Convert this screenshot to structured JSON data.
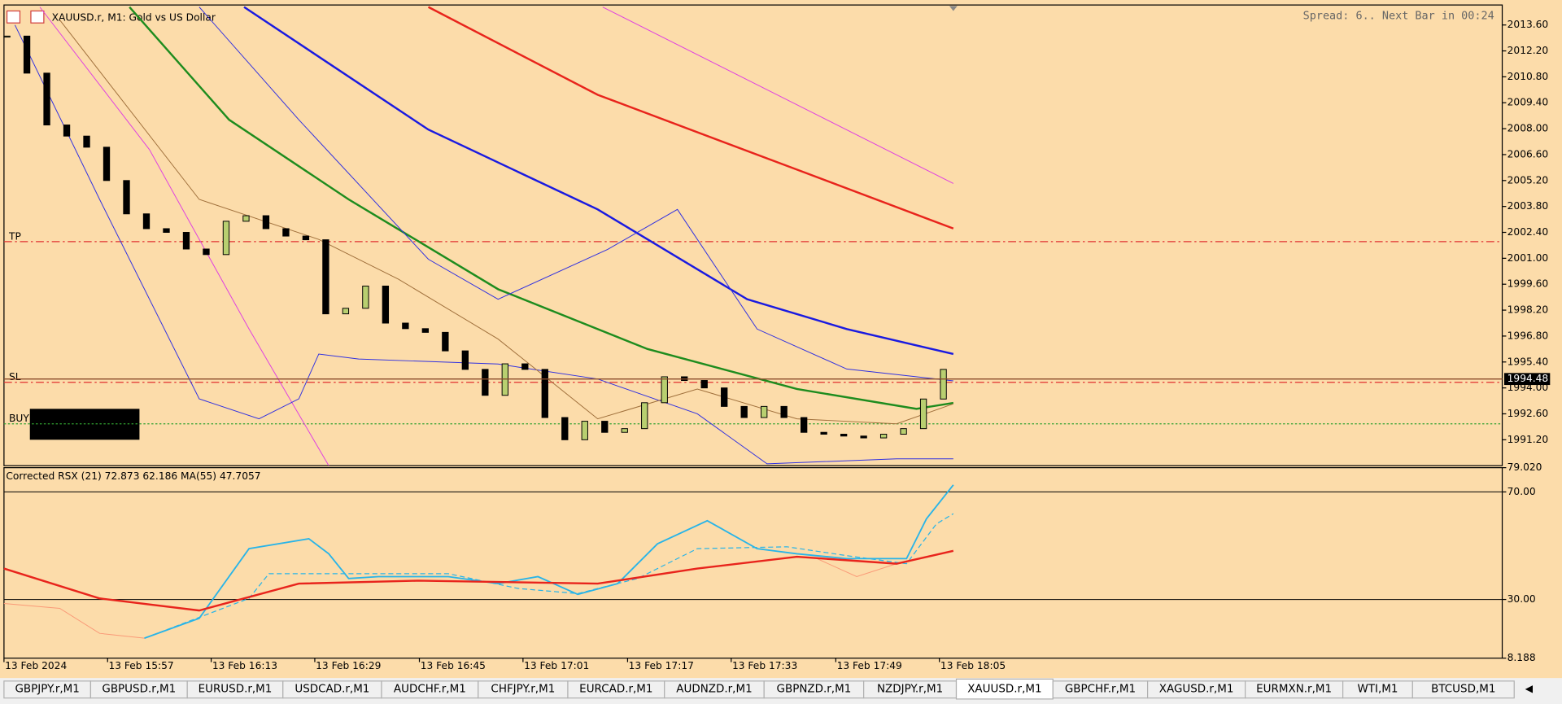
{
  "window": {
    "symbol_title": "XAUUSD.r, M1:  Gold vs US Dollar",
    "status": "Spread: 6.. Next Bar in 00:24"
  },
  "chart_data": [
    {
      "type": "candlestick",
      "xlim": [
        -0.15,
        75.05
      ],
      "ylim": [
        1989.8,
        2014.68
      ],
      "yticks": [
        {
          "value": 2013.6,
          "label": "2013.60"
        },
        {
          "value": 2012.2,
          "label": "2012.20"
        },
        {
          "value": 2010.8,
          "label": "2010.80"
        },
        {
          "value": 2009.4,
          "label": "2009.40"
        },
        {
          "value": 2008,
          "label": "2008.00"
        },
        {
          "value": 2006.6,
          "label": "2006.60"
        },
        {
          "value": 2005.2,
          "label": "2005.20"
        },
        {
          "value": 2003.8,
          "label": "2003.80"
        },
        {
          "value": 2002.4,
          "label": "2002.40"
        },
        {
          "value": 2001,
          "label": "2001.00"
        },
        {
          "value": 1999.6,
          "label": "1999.60"
        },
        {
          "value": 1998.2,
          "label": "1998.20"
        },
        {
          "value": 1996.8,
          "label": "1996.80"
        },
        {
          "value": 1995.4,
          "label": "1995.40"
        },
        {
          "value": 1994,
          "label": "1994.00"
        },
        {
          "value": 1992.6,
          "label": "1992.60"
        },
        {
          "value": 1991.2,
          "label": "1991.20"
        }
      ],
      "values": [
        2013.0,
        2011.0,
        2008.2,
        2007.6,
        2007.0,
        2005.2,
        2003.4,
        2002.6,
        2002.4,
        2001.5,
        2001.2,
        2003.0,
        2003.3,
        2002.6,
        2002.2,
        2002.0,
        1998.0,
        1998.3,
        1999.5,
        1997.5,
        1997.2,
        1997.0,
        1996.0,
        1995.0,
        1993.6,
        1995.3,
        1995.0,
        1992.4,
        1991.2,
        1992.2,
        1991.6,
        1991.8,
        1993.2,
        1994.6,
        1994.4,
        1994.0,
        1993.0,
        1992.4,
        1993.0,
        1992.4,
        1991.6,
        1991.5,
        1991.4,
        1991.3,
        1991.5,
        1991.8,
        1993.4,
        1995.0
      ],
      "up_color": "#b8cf70",
      "down_color": "#000000",
      "lines": [
        {
          "color": "#e8241c",
          "style": "thick",
          "x": [
            21.15,
            29.65,
            39.65,
            47.5
          ],
          "values": [
            2014.57,
            2009.83,
            2005.79,
            2002.61
          ]
        },
        {
          "color": "#1a1ae0",
          "style": "thick",
          "x": [
            11.9,
            21.15,
            29.65,
            37.15,
            42.15,
            47.5
          ],
          "values": [
            2014.57,
            2007.95,
            2003.64,
            1998.79,
            1997.18,
            1995.83
          ]
        },
        {
          "color": "#1e8c1e",
          "style": "thick",
          "x": [
            6.15,
            11.15,
            17.15,
            24.65,
            32.15,
            39.65,
            45.65,
            47.5
          ],
          "values": [
            2014.57,
            2008.48,
            2004.18,
            1999.33,
            1996.1,
            1993.94,
            1992.87,
            1993.19
          ]
        },
        {
          "color": "#e040e0",
          "style": "thin",
          "x": [
            29.9,
            47.5
          ],
          "values": [
            2014.57,
            2005.04
          ]
        },
        {
          "color": "#e040e0",
          "style": "thin",
          "x": [
            1.65,
            7.15,
            12.15,
            16.15
          ],
          "values": [
            2014.57,
            2006.87,
            1997.18,
            1989.8
          ]
        },
        {
          "color": "#3030e0",
          "style": "thin",
          "x": [
            9.65,
            14.65,
            21.15,
            24.65,
            30.15,
            33.65,
            37.65,
            42.15,
            47.5
          ],
          "values": [
            2014.57,
            2008.48,
            2000.95,
            1998.79,
            2001.48,
            2003.64,
            1997.18,
            1995.02,
            1994.38
          ]
        },
        {
          "color": "#3030e0",
          "style": "thin",
          "x": [
            0.4,
            4.65,
            9.65,
            12.65,
            14.65,
            15.65,
            17.65,
            24.65,
            29.65,
            34.65,
            38.15,
            44.65,
            47.5
          ],
          "values": [
            2013.6,
            2004.18,
            1993.41,
            1992.33,
            1993.41,
            1995.83,
            1995.56,
            1995.29,
            1994.48,
            1992.6,
            1989.9,
            1990.17,
            1990.17
          ]
        },
        {
          "color": "#a0703c",
          "style": "thin",
          "x": [
            2.65,
            9.65,
            15.65,
            19.65,
            24.65,
            29.65,
            34.65,
            39.65,
            44.65,
            47.5
          ],
          "values": [
            2013.87,
            2004.18,
            2002.02,
            1999.87,
            1996.64,
            1992.33,
            1993.94,
            1992.33,
            1992.06,
            1993.14
          ]
        }
      ],
      "levels": [
        {
          "label": "TP",
          "value": 2001.9,
          "color": "#e03030",
          "style": "dashdot"
        },
        {
          "label": "SL",
          "value": 1994.3,
          "color": "#e03030",
          "style": "dashdot"
        },
        {
          "label": "BUY",
          "value": 1992.06,
          "color": "#30a030",
          "style": "dotted"
        }
      ],
      "bid": 1994.48
    },
    {
      "type": "line",
      "title": "Corrected RSX (21) 72.873 62.186 MA(55) 47.7057",
      "xlim": [
        -0.15,
        75.05
      ],
      "ylim": [
        8.188,
        79.02
      ],
      "yticks": [
        {
          "value": 79.02,
          "label": "79.020"
        },
        {
          "value": 70,
          "label": "70.00"
        },
        {
          "value": 30,
          "label": "30.00"
        },
        8.188
      ],
      "levels": [
        70,
        30
      ],
      "xticks": [
        {
          "value": -0.15,
          "label": "13 Feb 2024"
        },
        {
          "value": 5.05,
          "label": "13 Feb 15:57"
        },
        {
          "value": 10.25,
          "label": "13 Feb 16:13"
        },
        {
          "value": 15.45,
          "label": "13 Feb 16:29"
        },
        {
          "value": 20.7,
          "label": "13 Feb 16:45"
        },
        {
          "value": 25.9,
          "label": "13 Feb 17:01"
        },
        {
          "value": 31.15,
          "label": "13 Feb 17:17"
        },
        {
          "value": 36.35,
          "label": "13 Feb 17:33"
        },
        {
          "value": 41.6,
          "label": "13 Feb 17:49"
        },
        {
          "value": 46.8,
          "label": "13 Feb 18:05"
        }
      ],
      "series": [
        {
          "color": "#fa9a78",
          "style": "thin",
          "x": [
            -0.15,
            2.65,
            4.65,
            6.9,
            37.65,
            40.65,
            42.65,
            44.65
          ],
          "values": [
            28.5,
            26.7,
            17.4,
            15.6,
            null,
            45.2,
            38.5,
            43.3
          ]
        },
        {
          "color": "#28b4e8",
          "style": "dashed",
          "x": [
            6.9,
            12.15,
            13.15,
            16.15,
            22.15,
            25.65,
            28.65,
            31.65,
            34.65,
            39.15,
            42.15,
            45.15,
            46.65,
            47.5
          ],
          "values": [
            15.6,
            30.4,
            39.6,
            39.6,
            39.6,
            34.1,
            32.2,
            37.8,
            48.9,
            49.6,
            46.3,
            43.3,
            58.1,
            61.9
          ]
        },
        {
          "color": "#28b4e8",
          "style": "medium",
          "x": [
            6.9,
            9.65,
            12.15,
            15.15,
            16.15,
            17.15,
            18.65,
            22.15,
            24.65,
            26.65,
            28.65,
            30.65,
            32.65,
            35.15,
            37.65,
            39.65,
            42.15,
            45.15,
            46.15,
            47.5
          ],
          "values": [
            15.6,
            23.0,
            48.9,
            52.6,
            47.0,
            37.8,
            38.5,
            38.5,
            35.9,
            38.5,
            31.9,
            35.9,
            50.7,
            59.3,
            48.9,
            47.0,
            45.2,
            45.2,
            60.0,
            72.6
          ]
        },
        {
          "color": "#e8241c",
          "style": "thick",
          "x": [
            -0.15,
            4.65,
            9.65,
            14.65,
            20.65,
            29.65,
            34.65,
            39.65,
            44.65,
            47.5
          ],
          "values": [
            41.5,
            30.4,
            25.9,
            35.9,
            37.0,
            35.9,
            41.5,
            45.9,
            43.3,
            48.1
          ]
        }
      ]
    }
  ],
  "tabs": [
    {
      "label": "GBPJPY.r,M1",
      "active": false
    },
    {
      "label": "GBPUSD.r,M1",
      "active": false
    },
    {
      "label": "EURUSD.r,M1",
      "active": false
    },
    {
      "label": "USDCAD.r,M1",
      "active": false
    },
    {
      "label": "AUDCHF.r,M1",
      "active": false
    },
    {
      "label": "CHFJPY.r,M1",
      "active": false
    },
    {
      "label": "EURCAD.r,M1",
      "active": false
    },
    {
      "label": "AUDNZD.r,M1",
      "active": false
    },
    {
      "label": "GBPNZD.r,M1",
      "active": false
    },
    {
      "label": "NZDJPY.r,M1",
      "active": false
    },
    {
      "label": "XAUUSD.r,M1",
      "active": true
    },
    {
      "label": "GBPCHF.r,M1",
      "active": false
    },
    {
      "label": "XAGUSD.r,M1",
      "active": false
    },
    {
      "label": "EURMXN.r,M1",
      "active": false
    },
    {
      "label": "WTI,M1",
      "active": false
    },
    {
      "label": "BTCUSD,M1",
      "active": false
    }
  ]
}
